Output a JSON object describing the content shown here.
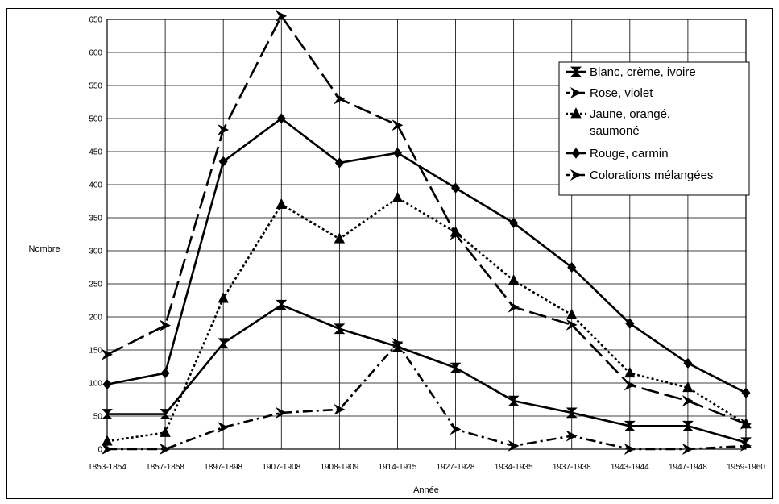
{
  "chart_data": {
    "type": "line",
    "title": "",
    "xlabel": "Année",
    "ylabel": "Nombre",
    "ylim": [
      0,
      650
    ],
    "y_ticks": [
      0,
      50,
      100,
      150,
      200,
      250,
      300,
      350,
      400,
      450,
      500,
      550,
      600,
      650
    ],
    "grid": true,
    "legend_position": "top-right",
    "categories": [
      "1853-1854",
      "1857-1858",
      "1897-1898",
      "1907-1908",
      "1908-1909",
      "1914-1915",
      "1927-1928",
      "1934-1935",
      "1937-1938",
      "1943-1944",
      "1947-1948",
      "1959-1960"
    ],
    "series": [
      {
        "name": "Blanc, crème, ivoire",
        "line": "solid",
        "marker": "hourglass",
        "values": [
          53,
          53,
          160,
          218,
          182,
          155,
          123,
          73,
          55,
          35,
          35,
          10
        ]
      },
      {
        "name": "Rose, violet",
        "line": "long-dash",
        "marker": "arrow",
        "values": [
          143,
          187,
          483,
          655,
          530,
          490,
          325,
          215,
          188,
          97,
          73,
          38
        ]
      },
      {
        "name": "Jaune, orangé, saumoné",
        "line": "dotted",
        "marker": "triangle",
        "values": [
          12,
          25,
          228,
          370,
          318,
          380,
          328,
          255,
          203,
          115,
          93,
          38
        ]
      },
      {
        "name": "Rouge, carmin",
        "line": "solid",
        "marker": "diamond",
        "values": [
          98,
          115,
          435,
          500,
          433,
          448,
          395,
          342,
          275,
          190,
          130,
          85
        ]
      },
      {
        "name": "Colorations mélangées",
        "line": "dash-dot",
        "marker": "arrow",
        "values": [
          0,
          0,
          33,
          55,
          60,
          160,
          30,
          5,
          20,
          0,
          0,
          5
        ]
      }
    ]
  }
}
